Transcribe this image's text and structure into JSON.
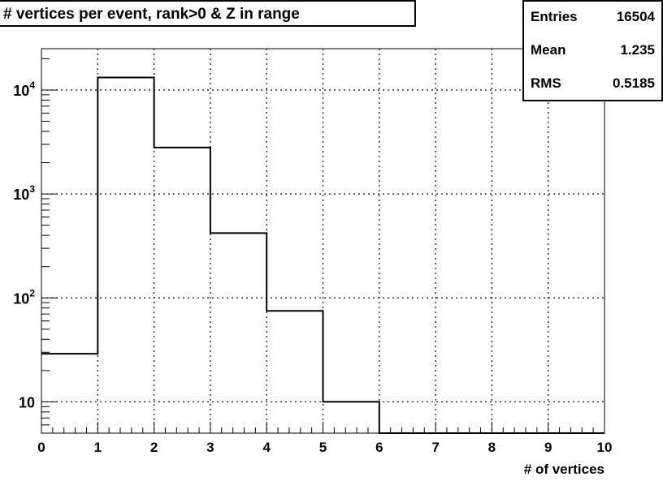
{
  "chart_data": {
    "type": "histogram",
    "title": "# vertices per event, rank>0 & Z in range",
    "xlabel": "# of vertices",
    "ylabel": "",
    "xlim": [
      0,
      10
    ],
    "ylim": [
      5,
      25000
    ],
    "y_scale": "log",
    "grid": true,
    "bin_edges": [
      0,
      1,
      2,
      3,
      4,
      5,
      6,
      7,
      8,
      9,
      10
    ],
    "values": [
      29,
      13200,
      2800,
      420,
      75,
      10,
      0,
      0,
      0,
      0
    ],
    "x_tick_labels": [
      "0",
      "1",
      "2",
      "3",
      "4",
      "5",
      "6",
      "7",
      "8",
      "9",
      "10"
    ],
    "y_tick_labels": [
      {
        "value": 10,
        "base": "10",
        "exp": ""
      },
      {
        "value": 100,
        "base": "10",
        "exp": "2"
      },
      {
        "value": 1000,
        "base": "10",
        "exp": "3"
      },
      {
        "value": 10000,
        "base": "10",
        "exp": "4"
      }
    ],
    "stats": {
      "entries_label": "Entries",
      "entries": "16504",
      "mean_label": "Mean",
      "mean": "1.235",
      "rms_label": "RMS",
      "rms": "0.5185"
    }
  }
}
